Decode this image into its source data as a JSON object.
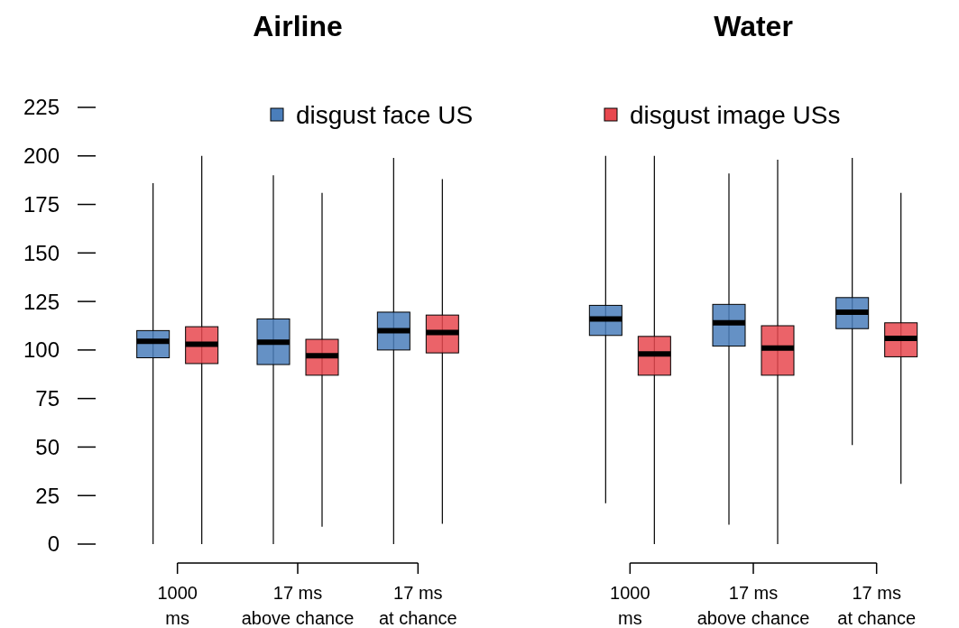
{
  "chart_data": [
    {
      "type": "box",
      "title": "Airline",
      "categories": [
        "1000\nms",
        "17 ms\nabove chance",
        "17 ms\nat chance"
      ],
      "ylim": [
        0,
        225
      ],
      "yticks": [
        0,
        25,
        50,
        75,
        100,
        125,
        150,
        175,
        200,
        225
      ],
      "legend": "top",
      "series": [
        {
          "name": "disgust face US",
          "color": "#4a7ebb",
          "boxes": [
            {
              "low": 0,
              "q1": 96,
              "median": 104.5,
              "q3": 110,
              "high": 186
            },
            {
              "low": 0,
              "q1": 92.5,
              "median": 104,
              "q3": 116,
              "high": 190
            },
            {
              "low": 0,
              "q1": 100,
              "median": 110,
              "q3": 119.5,
              "high": 199
            }
          ]
        },
        {
          "color": "#e8484f",
          "boxes": [
            {
              "low": 0,
              "q1": 93,
              "median": 103,
              "q3": 112,
              "high": 200
            },
            {
              "low": 9,
              "q1": 87,
              "median": 97,
              "q3": 105.5,
              "high": 181
            },
            {
              "low": 10.5,
              "q1": 98.5,
              "median": 109,
              "q3": 118,
              "high": 188
            }
          ]
        }
      ]
    },
    {
      "type": "box",
      "title": "Water",
      "categories": [
        "1000\nms",
        "17 ms\nabove chance",
        "17 ms\nat chance"
      ],
      "ylim": [
        0,
        225
      ],
      "tick_labels": "x",
      "legend": "top",
      "series": [
        {
          "color": "#4a7ebb",
          "boxes": [
            {
              "low": 21,
              "q1": 107.5,
              "median": 116,
              "q3": 123,
              "high": 200
            },
            {
              "low": 10,
              "q1": 102,
              "median": 114,
              "q3": 123.5,
              "high": 191
            },
            {
              "low": 51,
              "q1": 111,
              "median": 119.5,
              "q3": 127,
              "high": 199
            }
          ]
        },
        {
          "name": "disgust image USs",
          "color": "#e8484f",
          "boxes": [
            {
              "low": 0,
              "q1": 87,
              "median": 98,
              "q3": 107,
              "high": 200
            },
            {
              "low": 0,
              "q1": 87,
              "median": 101,
              "q3": 112.5,
              "high": 198
            },
            {
              "low": 31,
              "q1": 96.5,
              "median": 106,
              "q3": 114,
              "high": 181
            }
          ]
        }
      ]
    }
  ]
}
